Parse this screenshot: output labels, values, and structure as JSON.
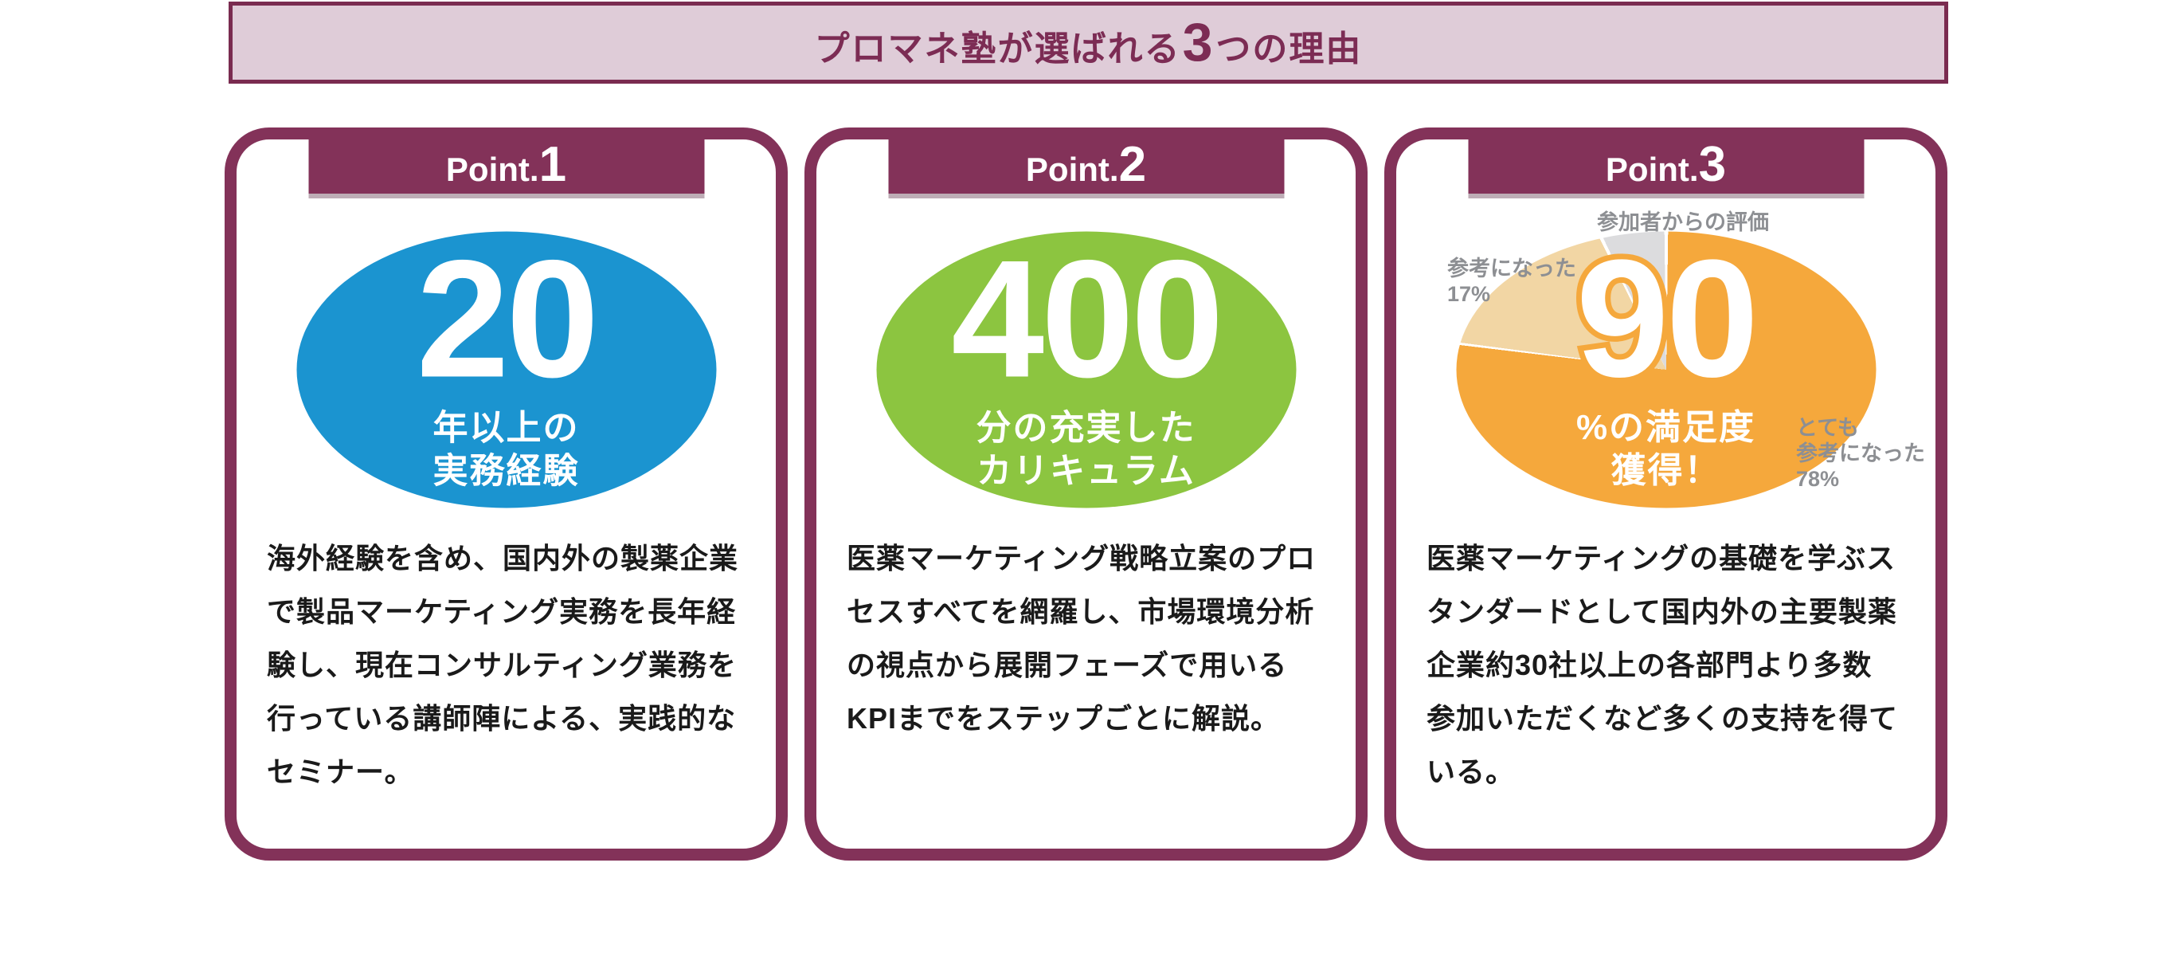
{
  "banner": {
    "title_prefix": "プロマネ塾が選ばれる",
    "title_highlight": "3",
    "title_suffix": "つの理由"
  },
  "cards": [
    {
      "point_label": "Point.",
      "point_number": "1",
      "stat": {
        "number": "20",
        "caption": "年以上の\n実務経験",
        "color": "#1B94D0"
      },
      "body": "海外経験を含め、国内外の製薬企業で製品マーケティング実務を長年経験し、現在コンサルティング業務を行っている講師陣による、実践的なセミナー。"
    },
    {
      "point_label": "Point.",
      "point_number": "2",
      "stat": {
        "number": "400",
        "caption": "分の充実した\nカリキュラム",
        "color": "#8CC540"
      },
      "body": "医薬マーケティング戦略立案のプロセスすべてを網羅し、市場環境分析の視点から展開フェーズで用いるKPIまでをステップごとに解説。"
    },
    {
      "point_label": "Point.",
      "point_number": "3",
      "stat": {
        "number": "90",
        "caption": "%の満足度\n獲得！",
        "color": "#F5A83C"
      },
      "pie": {
        "chart_title": "参加者からの評価",
        "label_left": "参考になった\n17%",
        "label_right": "とても\n参考になった\n78%"
      },
      "body": "医薬マーケティングの基礎を学ぶスタンダードとして国内外の主要製薬企業約30社以上の各部門より多数参加いただくなど多くの支持を得ている。"
    }
  ],
  "chart_data": {
    "type": "pie",
    "title": "参加者からの評価",
    "labels": [
      "とても参考になった",
      "参考になった",
      ""
    ],
    "values": [
      78,
      17,
      5
    ],
    "colors": [
      "#F5A83C",
      "#F2D6A4",
      "#DCDCDE"
    ],
    "center_text": "90%の満足度 獲得！",
    "start_angle_deg": 0,
    "direction": "clockwise",
    "legend_position": "around-slices"
  },
  "colors": {
    "plum_border": "#833259",
    "banner_border": "#7A2B50",
    "banner_bg": "#DFCCD8",
    "banner_text": "#7C2C54",
    "blue": "#1B94D0",
    "green": "#8CC540",
    "orange": "#F5A83C",
    "pie_tan": "#F2D6A4",
    "pie_gray": "#DCDCDE",
    "label_gray": "#8D8F93",
    "body_text": "#1A1A1A"
  }
}
